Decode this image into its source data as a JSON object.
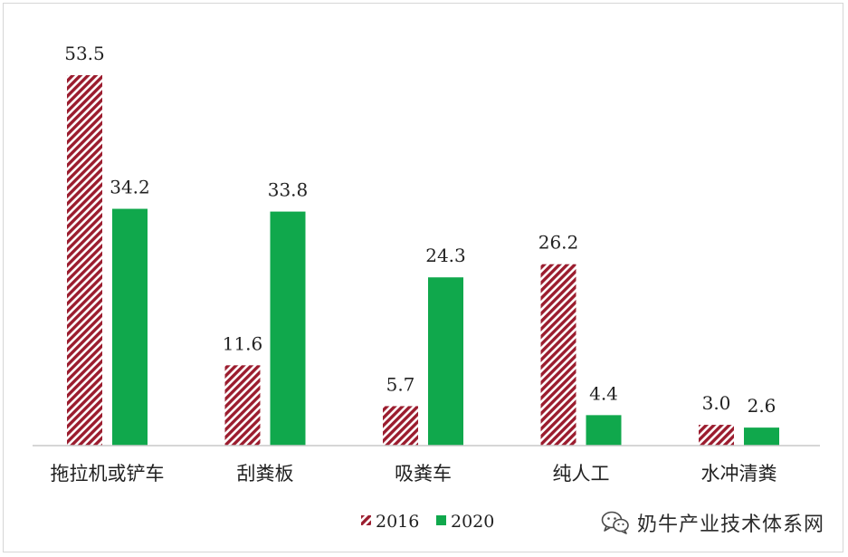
{
  "chart_data": {
    "type": "bar",
    "categories": [
      "拖拉机或铲车",
      "刮粪板",
      "吸粪车",
      "纯人工",
      "水冲清粪"
    ],
    "series": [
      {
        "name": "2016",
        "values": [
          53.5,
          11.6,
          5.7,
          26.2,
          3.0
        ],
        "labels": [
          "53.5",
          "11.6",
          "5.7",
          "26.2",
          "3.0"
        ],
        "color": "#9b1c2e",
        "pattern": "diagonal-hatch"
      },
      {
        "name": "2020",
        "values": [
          34.2,
          33.8,
          24.3,
          4.4,
          2.6
        ],
        "labels": [
          "34.2",
          "33.8",
          "24.3",
          "4.4",
          "2.6"
        ],
        "color": "#10a84c",
        "pattern": "solid"
      }
    ],
    "ylim": [
      0,
      53.5
    ],
    "grid": false,
    "legend_position": "bottom-center"
  },
  "watermark": {
    "icon": "wechat-icon",
    "text": "奶牛产业技术体系网"
  }
}
